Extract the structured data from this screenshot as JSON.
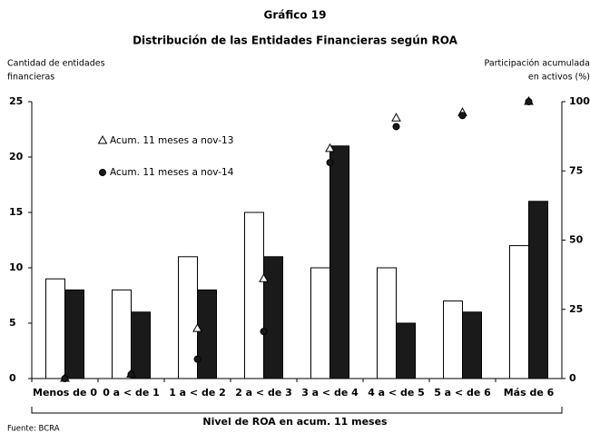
{
  "chart_data": {
    "type": "bar",
    "title": "Gráfico 19",
    "subtitle": "Distribución de las Entidades Financieras según ROA",
    "ylabel": [
      "Cantidad de entidades",
      "financieras"
    ],
    "y2label": [
      "Participación acumulada",
      "en activos (%)"
    ],
    "xlabel": "Nivel de ROA en acum. 11 meses",
    "source": "Fuente: BCRA",
    "categories": [
      "Menos de 0",
      "0 a < de 1",
      "1 a < de 2",
      "2 a < de 3",
      "3 a < de 4",
      "4 a < de 5",
      "5 a < de 6",
      "Más de 6"
    ],
    "series": [
      {
        "color": "#ffffff",
        "values": [
          9,
          8,
          11,
          15,
          10,
          10,
          7,
          12
        ]
      },
      {
        "color": "#1a1a1a",
        "values": [
          8,
          6,
          8,
          11,
          21,
          5,
          6,
          16
        ]
      },
      {
        "name": "Acum. 11 meses a nov-13",
        "type": "triangle",
        "axis": "y2",
        "color": "#ffffff",
        "values": [
          0,
          1.5,
          18,
          36,
          83,
          94,
          96,
          100
        ]
      },
      {
        "name": "Acum. 11 meses a nov-14",
        "type": "dot",
        "axis": "y2",
        "color": "#1a1a1a",
        "values": [
          0,
          1.5,
          7,
          17,
          78,
          91,
          95,
          100
        ]
      }
    ],
    "ylim": [
      0,
      25
    ],
    "yticks": [
      0,
      5,
      10,
      15,
      20,
      25
    ],
    "y2lim": [
      0,
      100
    ],
    "y2ticks": [
      0,
      25,
      50,
      75,
      100
    ],
    "legend": "upper left",
    "grid": false
  }
}
